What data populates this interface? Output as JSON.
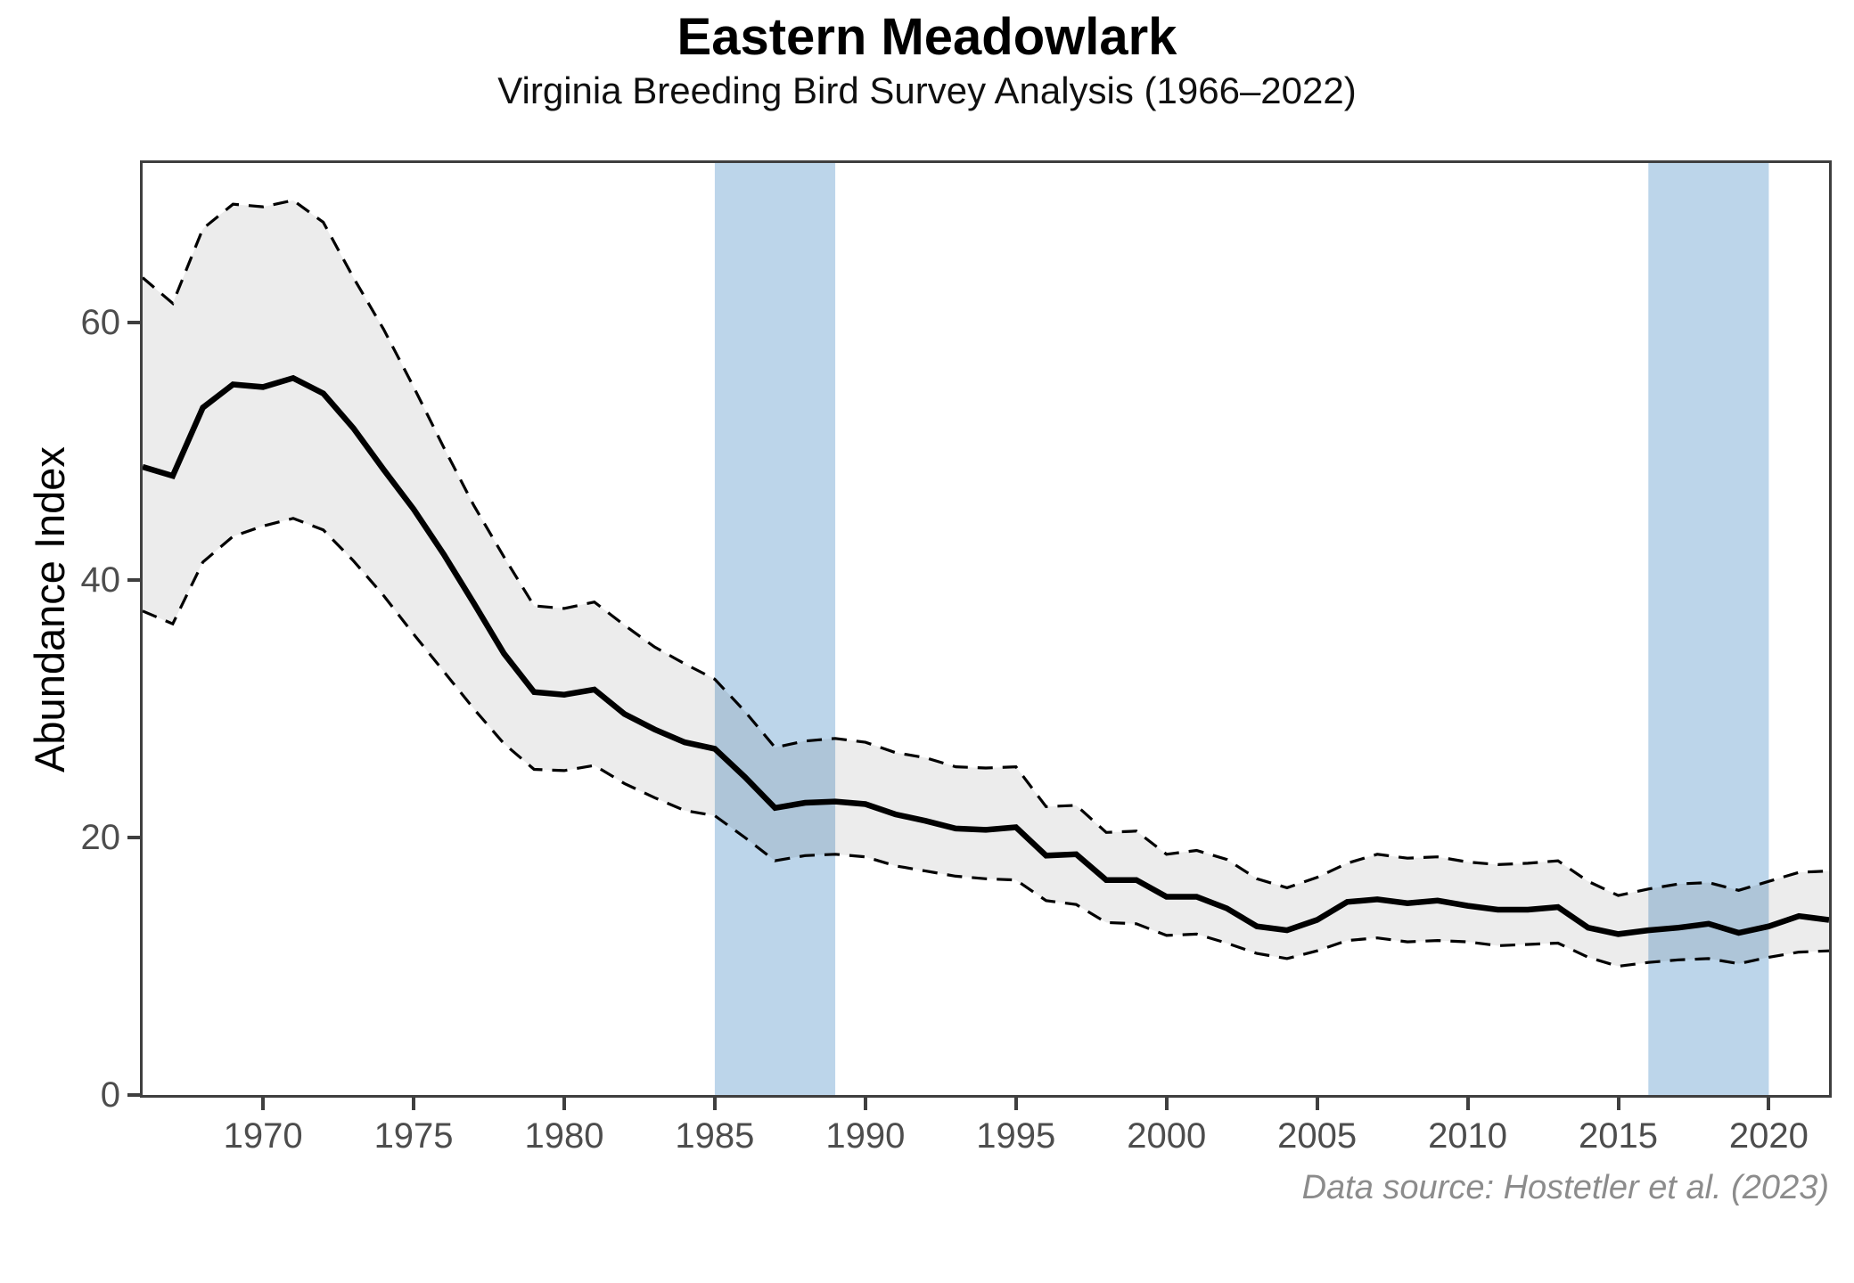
{
  "page": {
    "title": "Eastern Meadowlark",
    "subtitle": "Virginia Breeding Bird Survey Analysis (1966–2022)",
    "caption": "Data source: Hostetler et al. (2023)"
  },
  "chart_data": {
    "type": "line",
    "title": "Eastern Meadowlark",
    "subtitle": "Virginia Breeding Bird Survey Analysis (1966–2022)",
    "caption": "Data source: Hostetler et al. (2023)",
    "xlabel": "",
    "ylabel": "Abundance Index",
    "x_domain": [
      1966,
      2022
    ],
    "y_domain": [
      0,
      72.4
    ],
    "x_ticks": [
      1970,
      1975,
      1980,
      1985,
      1990,
      1995,
      2000,
      2005,
      2010,
      2015,
      2020
    ],
    "y_ticks": [
      0,
      20,
      40,
      60
    ],
    "grid": false,
    "legend_position": "none",
    "years": [
      1966,
      1967,
      1968,
      1969,
      1970,
      1971,
      1972,
      1973,
      1974,
      1975,
      1976,
      1977,
      1978,
      1979,
      1980,
      1981,
      1982,
      1983,
      1984,
      1985,
      1986,
      1987,
      1988,
      1989,
      1990,
      1991,
      1992,
      1993,
      1994,
      1995,
      1996,
      1997,
      1998,
      1999,
      2000,
      2001,
      2002,
      2003,
      2004,
      2005,
      2006,
      2007,
      2008,
      2009,
      2010,
      2011,
      2012,
      2013,
      2014,
      2015,
      2016,
      2017,
      2018,
      2019,
      2020,
      2021,
      2022
    ],
    "series": [
      {
        "name": "abundance-index",
        "style": "solid",
        "color": "#000000",
        "width": 6.5,
        "values": [
          48.8,
          48.1,
          53.4,
          55.2,
          55.0,
          55.7,
          54.5,
          51.8,
          48.6,
          45.5,
          42.0,
          38.2,
          34.3,
          31.3,
          31.1,
          31.5,
          29.6,
          28.4,
          27.4,
          26.9,
          24.7,
          22.3,
          22.7,
          22.8,
          22.6,
          21.8,
          21.3,
          20.7,
          20.6,
          20.8,
          18.6,
          18.7,
          16.7,
          16.7,
          15.4,
          15.4,
          14.5,
          13.1,
          12.8,
          13.6,
          15.0,
          15.2,
          14.9,
          15.1,
          14.7,
          14.4,
          14.4,
          14.6,
          13.0,
          12.5,
          12.8,
          13.0,
          13.3,
          12.6,
          13.1,
          13.9,
          13.6
        ]
      },
      {
        "name": "upper-95ci",
        "style": "dashed",
        "color": "#000000",
        "width": 3.2,
        "values": [
          63.5,
          61.5,
          67.3,
          69.2,
          69.0,
          69.5,
          67.8,
          63.5,
          59.5,
          55.0,
          50.3,
          45.8,
          41.8,
          38.0,
          37.8,
          38.3,
          36.5,
          34.8,
          33.5,
          32.3,
          29.8,
          27.0,
          27.5,
          27.7,
          27.4,
          26.6,
          26.2,
          25.5,
          25.4,
          25.5,
          22.4,
          22.5,
          20.4,
          20.5,
          18.7,
          19.0,
          18.3,
          16.8,
          16.1,
          16.9,
          18.0,
          18.7,
          18.4,
          18.5,
          18.1,
          17.9,
          18.0,
          18.2,
          16.6,
          15.5,
          16.0,
          16.4,
          16.5,
          15.9,
          16.6,
          17.3,
          17.4
        ]
      },
      {
        "name": "lower-95ci",
        "style": "dashed",
        "color": "#000000",
        "width": 3.2,
        "values": [
          37.6,
          36.6,
          41.4,
          43.4,
          44.2,
          44.8,
          43.9,
          41.5,
          38.8,
          35.8,
          32.9,
          30.0,
          27.3,
          25.3,
          25.2,
          25.6,
          24.2,
          23.1,
          22.1,
          21.7,
          20.0,
          18.2,
          18.6,
          18.7,
          18.5,
          17.8,
          17.4,
          17.0,
          16.8,
          16.7,
          15.1,
          14.8,
          13.4,
          13.3,
          12.4,
          12.5,
          11.8,
          11.0,
          10.6,
          11.2,
          12.0,
          12.2,
          11.9,
          12.0,
          11.9,
          11.6,
          11.7,
          11.8,
          10.7,
          10.0,
          10.3,
          10.5,
          10.6,
          10.2,
          10.7,
          11.1,
          11.2
        ]
      }
    ],
    "ci_fill_color": "rgba(0,0,0,0.075)",
    "highlight_bands": [
      {
        "x_start": 1985,
        "x_end": 1989
      },
      {
        "x_start": 2016,
        "x_end": 2020
      }
    ],
    "band_color": "#bcd5ea",
    "axis_color": "#3f3f3f",
    "tick_label_color": "#4d4d4d"
  }
}
